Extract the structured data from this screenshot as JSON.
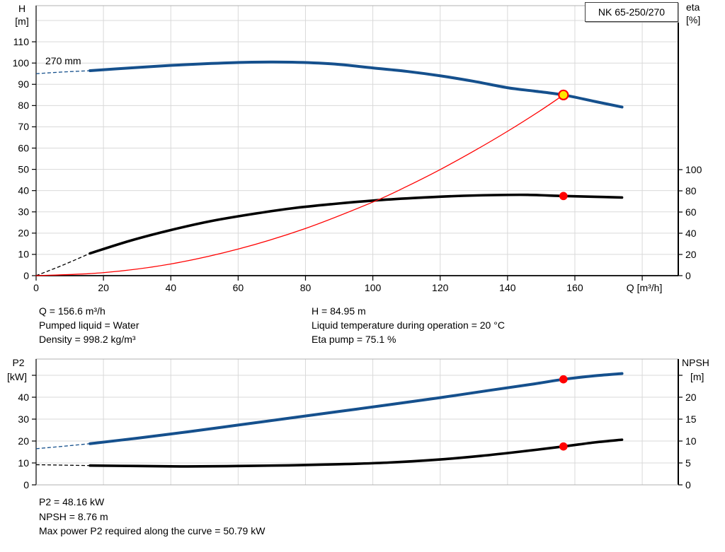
{
  "colors": {
    "curve_blue": "#15508d",
    "curve_black": "#000000",
    "curve_red": "#ff0000",
    "duty_yellow": "#ffe600",
    "grid": "#d9d9d9",
    "plot_border": "#b0b0b0",
    "axis": "#000000"
  },
  "info": {
    "left": [
      "Q = 156.6 m³/h",
      "Pumped liquid = Water",
      "Density = 998.2 kg/m³"
    ],
    "right": [
      "H = 84.95 m",
      "Liquid temperature during operation = 20 °C",
      "Eta pump = 75.1 %"
    ],
    "bottom": [
      "P2 = 48.16 kW",
      "NPSH = 8.76 m",
      "Max power P2 required along the curve = 50.79 kW"
    ]
  },
  "chart_data": [
    {
      "type": "line",
      "title": "NK 65-250/270",
      "xlabel": "Q [m³/h]",
      "x_range": [
        0,
        190
      ],
      "x_ticks": [
        0,
        20,
        40,
        60,
        80,
        100,
        120,
        140,
        160
      ],
      "x_title_tick": 180,
      "grid_x": [
        20,
        40,
        60,
        80,
        100,
        120,
        140,
        160,
        180
      ],
      "y_left_title": [
        "H",
        "[m]"
      ],
      "y_left_range": [
        0,
        127
      ],
      "y_left_ticks": [
        0,
        10,
        20,
        30,
        40,
        50,
        60,
        70,
        80,
        90,
        100,
        110
      ],
      "grid_y_left": [
        10,
        20,
        30,
        40,
        50,
        60,
        70,
        80,
        90,
        100,
        110,
        120
      ],
      "y_right_title": [
        "eta",
        "[%]"
      ],
      "y_right_range": [
        0,
        100
      ],
      "y_right_ticks": [
        0,
        20,
        40,
        60,
        80,
        100
      ],
      "annotation": "270 mm",
      "series": [
        {
          "id": "pump-head-curve",
          "name": "Pump curve 270 mm (H vs Q)",
          "axis": "left",
          "color": "blue",
          "width": 4,
          "lead": [
            [
              0,
              95.0
            ],
            [
              8,
              95.8
            ],
            [
              16,
              96.4
            ]
          ],
          "points": [
            [
              16,
              96.4
            ],
            [
              28,
              97.7
            ],
            [
              40,
              98.9
            ],
            [
              52,
              99.8
            ],
            [
              64,
              100.4
            ],
            [
              76,
              100.4
            ],
            [
              88,
              99.6
            ],
            [
              100,
              97.7
            ],
            [
              110,
              96.1
            ],
            [
              120,
              94.0
            ],
            [
              130,
              91.4
            ],
            [
              140,
              88.4
            ],
            [
              148,
              86.8
            ],
            [
              156.6,
              85.0
            ],
            [
              166,
              81.9
            ],
            [
              174,
              79.3
            ]
          ]
        },
        {
          "id": "efficiency-curve",
          "name": "Pump efficiency (eta vs Q)",
          "axis": "right",
          "color": "black",
          "width": 3.6,
          "lead": [
            [
              0,
              0
            ],
            [
              8,
              10
            ],
            [
              16,
              21
            ]
          ],
          "points": [
            [
              16,
              21
            ],
            [
              28,
              33
            ],
            [
              40,
              43
            ],
            [
              52,
              51.5
            ],
            [
              64,
              58
            ],
            [
              76,
              63.5
            ],
            [
              88,
              67.5
            ],
            [
              100,
              70.8
            ],
            [
              112,
              73.2
            ],
            [
              124,
              75.0
            ],
            [
              136,
              76.0
            ],
            [
              146,
              76.2
            ],
            [
              156.6,
              75.1
            ],
            [
              166,
              74.4
            ],
            [
              174,
              73.7
            ]
          ]
        },
        {
          "id": "system-curve",
          "name": "System curve to duty point",
          "axis": "left",
          "color": "red",
          "width": 1.3,
          "points": [
            [
              0,
              0
            ],
            [
              20,
              1.4
            ],
            [
              40,
              5.5
            ],
            [
              60,
              12.5
            ],
            [
              80,
              22.2
            ],
            [
              100,
              34.6
            ],
            [
              110,
              41.9
            ],
            [
              120,
              49.9
            ],
            [
              130,
              58.6
            ],
            [
              140,
              67.9
            ],
            [
              150,
              77.9
            ],
            [
              156.6,
              85.0
            ]
          ]
        }
      ],
      "markers": [
        {
          "id": "duty-point-marker",
          "q": 156.6,
          "value": 85.0,
          "axis": "left",
          "style": "duty"
        },
        {
          "id": "efficiency-point-marker",
          "q": 156.6,
          "value": 75.1,
          "axis": "right",
          "style": "dot"
        }
      ]
    },
    {
      "type": "line",
      "title": "",
      "xlabel": "Q [m³/h]",
      "x_range": [
        0,
        190
      ],
      "grid_x": [
        20,
        40,
        60,
        80,
        100,
        120,
        140,
        160,
        180
      ],
      "y_left_title": [
        "P2",
        "[kW]"
      ],
      "y_left_range": [
        0,
        57
      ],
      "y_left_ticks": [
        0,
        10,
        20,
        30,
        40
      ],
      "y_left_tick_marks": [
        50
      ],
      "grid_y_left": [
        10,
        20,
        30,
        40,
        50
      ],
      "y_right_title": [
        "NPSH",
        "[m]"
      ],
      "y_right_range": [
        0,
        28.5
      ],
      "y_right_ticks": [
        0,
        5,
        10,
        15,
        20
      ],
      "y_right_tick_marks": [
        25
      ],
      "series": [
        {
          "id": "p2-curve",
          "name": "Shaft power P2 vs Q",
          "axis": "left",
          "color": "blue",
          "width": 4,
          "lead": [
            [
              0,
              16.5
            ],
            [
              8,
              17.6
            ],
            [
              16,
              18.8
            ]
          ],
          "points": [
            [
              16,
              18.8
            ],
            [
              30,
              21.3
            ],
            [
              45,
              24.2
            ],
            [
              60,
              27.3
            ],
            [
              75,
              30.4
            ],
            [
              90,
              33.5
            ],
            [
              105,
              36.6
            ],
            [
              120,
              39.8
            ],
            [
              135,
              43.2
            ],
            [
              148,
              46.1
            ],
            [
              156.6,
              48.16
            ],
            [
              166,
              49.8
            ],
            [
              174,
              50.79
            ]
          ]
        },
        {
          "id": "npsh-curve",
          "name": "NPSH vs Q",
          "axis": "right",
          "color": "black",
          "width": 3.6,
          "lead": [
            [
              0,
              4.6
            ],
            [
              8,
              4.5
            ],
            [
              16,
              4.4
            ]
          ],
          "points": [
            [
              16,
              4.4
            ],
            [
              30,
              4.3
            ],
            [
              45,
              4.2
            ],
            [
              60,
              4.3
            ],
            [
              75,
              4.45
            ],
            [
              90,
              4.7
            ],
            [
              105,
              5.1
            ],
            [
              120,
              5.8
            ],
            [
              132,
              6.6
            ],
            [
              144,
              7.6
            ],
            [
              156.6,
              8.76
            ],
            [
              166,
              9.7
            ],
            [
              174,
              10.3
            ]
          ]
        }
      ],
      "markers": [
        {
          "id": "p2-point-marker",
          "q": 156.6,
          "value": 48.16,
          "axis": "left",
          "style": "dot"
        },
        {
          "id": "npsh-point-marker",
          "q": 156.6,
          "value": 8.76,
          "axis": "right",
          "style": "dot"
        }
      ]
    }
  ]
}
